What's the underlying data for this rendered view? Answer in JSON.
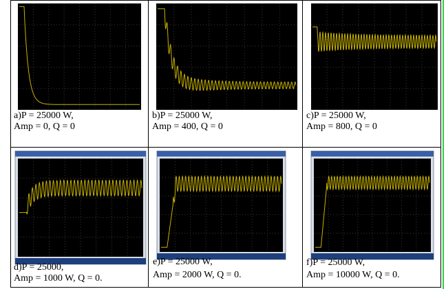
{
  "panels": [
    {
      "caption": [
        "a)P  = 25000 W,",
        "Amp = 0, Q = 0"
      ]
    },
    {
      "caption": [
        "b)P  = 25000 W,",
        " Amp = 400, Q = 0"
      ]
    },
    {
      "caption": [
        "c)P = 25000 W,",
        "Amp = 800, Q = 0"
      ]
    },
    {
      "caption": [
        "d)P = 25000,",
        "Amp = 1000 W, Q = 0."
      ]
    },
    {
      "caption": [
        "e)P = 25000 W,",
        "Amp = 2000 W, Q = 0."
      ]
    },
    {
      "caption": [
        "f)P = 25000 W,",
        "Amp = 10000 W, Q = 0."
      ]
    }
  ]
}
